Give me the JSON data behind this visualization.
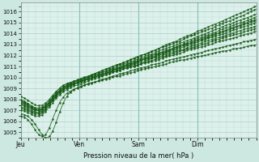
{
  "xlabel": "Pression niveau de la mer( hPa )",
  "ylim": [
    1004.5,
    1016.8
  ],
  "xlim": [
    0,
    96
  ],
  "yticks": [
    1005,
    1006,
    1007,
    1008,
    1009,
    1010,
    1011,
    1012,
    1013,
    1014,
    1015,
    1016
  ],
  "xtick_labels": [
    "Jeu",
    "Ven",
    "Sam",
    "Dim"
  ],
  "xtick_positions": [
    0,
    24,
    48,
    72
  ],
  "bg_color": "#cce8e0",
  "grid_major_color": "#aacfc8",
  "grid_minor_color": "#bbddd6",
  "line_color": "#1a5c1a",
  "ax_bg": "#ddf0eb",
  "seed": 42
}
